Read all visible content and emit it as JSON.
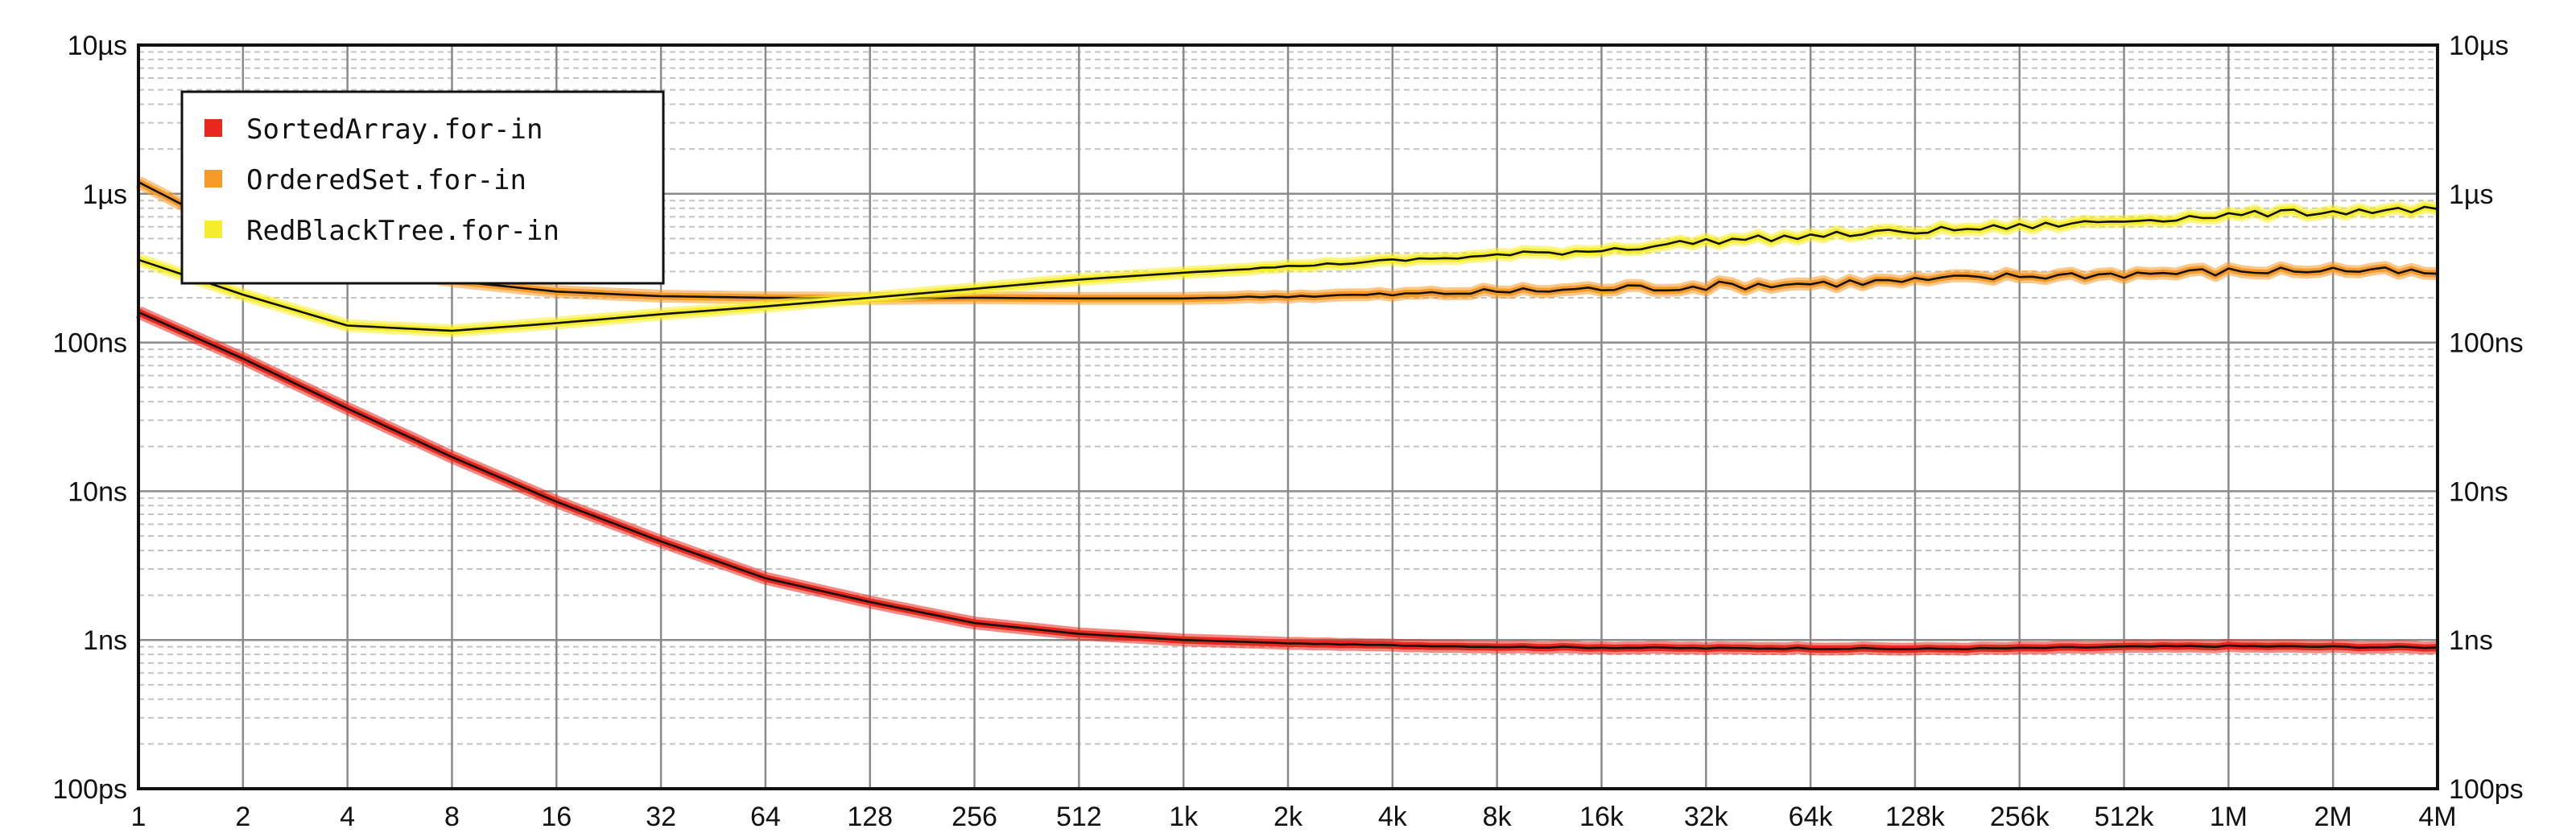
{
  "chart_data": {
    "type": "line",
    "title": "",
    "xlabel": "",
    "ylabel": "",
    "x_scale": "log2",
    "y_scale": "log10",
    "x_tick_labels": [
      "1",
      "2",
      "4",
      "8",
      "16",
      "32",
      "64",
      "128",
      "256",
      "512",
      "1k",
      "2k",
      "4k",
      "8k",
      "16k",
      "32k",
      "64k",
      "128k",
      "256k",
      "512k",
      "1M",
      "2M",
      "4M"
    ],
    "y_tick_labels": [
      "100ps",
      "1ns",
      "10ns",
      "100ns",
      "1µs",
      "10µs"
    ],
    "y_tick_labels_right": [
      "100ps",
      "1ns",
      "10ns",
      "100ns",
      "1µs",
      "10µs"
    ],
    "xlim": [
      1,
      4194304
    ],
    "ylim_ns": [
      0.1,
      10000
    ],
    "grid": true,
    "legend_position": "top-left",
    "series": [
      {
        "name": "SortedArray.for-in",
        "color": "#e8281c",
        "x": [
          1,
          2,
          4,
          8,
          16,
          32,
          64,
          128,
          256,
          512,
          1024,
          2048,
          4096,
          8192,
          16384,
          32768,
          65536,
          131072,
          262144,
          524288,
          1048576,
          2097152,
          4194304
        ],
        "y_ns": [
          160,
          78,
          36,
          17,
          8.5,
          4.6,
          2.6,
          1.8,
          1.3,
          1.1,
          1.0,
          0.95,
          0.92,
          0.9,
          0.89,
          0.88,
          0.88,
          0.87,
          0.88,
          0.9,
          0.91,
          0.9,
          0.89
        ]
      },
      {
        "name": "OrderedSet.for-in",
        "color": "#f89a28",
        "x": [
          1,
          2,
          4,
          8,
          16,
          32,
          64,
          128,
          256,
          512,
          1024,
          2048,
          4096,
          8192,
          16384,
          32768,
          65536,
          131072,
          262144,
          524288,
          1048576,
          2097152,
          4194304
        ],
        "y_ns": [
          1200,
          520,
          340,
          260,
          220,
          205,
          200,
          198,
          200,
          198,
          198,
          205,
          210,
          220,
          230,
          240,
          250,
          260,
          280,
          290,
          300,
          310,
          290
        ]
      },
      {
        "name": "RedBlackTree.for-in",
        "color": "#f6ee2c",
        "x": [
          1,
          2,
          4,
          8,
          16,
          32,
          64,
          128,
          256,
          512,
          1024,
          2048,
          4096,
          8192,
          16384,
          32768,
          65536,
          131072,
          262144,
          524288,
          1048576,
          2097152,
          4194304
        ],
        "y_ns": [
          360,
          210,
          130,
          120,
          135,
          155,
          175,
          200,
          230,
          265,
          295,
          325,
          355,
          385,
          420,
          480,
          520,
          560,
          600,
          660,
          720,
          760,
          790
        ]
      }
    ]
  }
}
